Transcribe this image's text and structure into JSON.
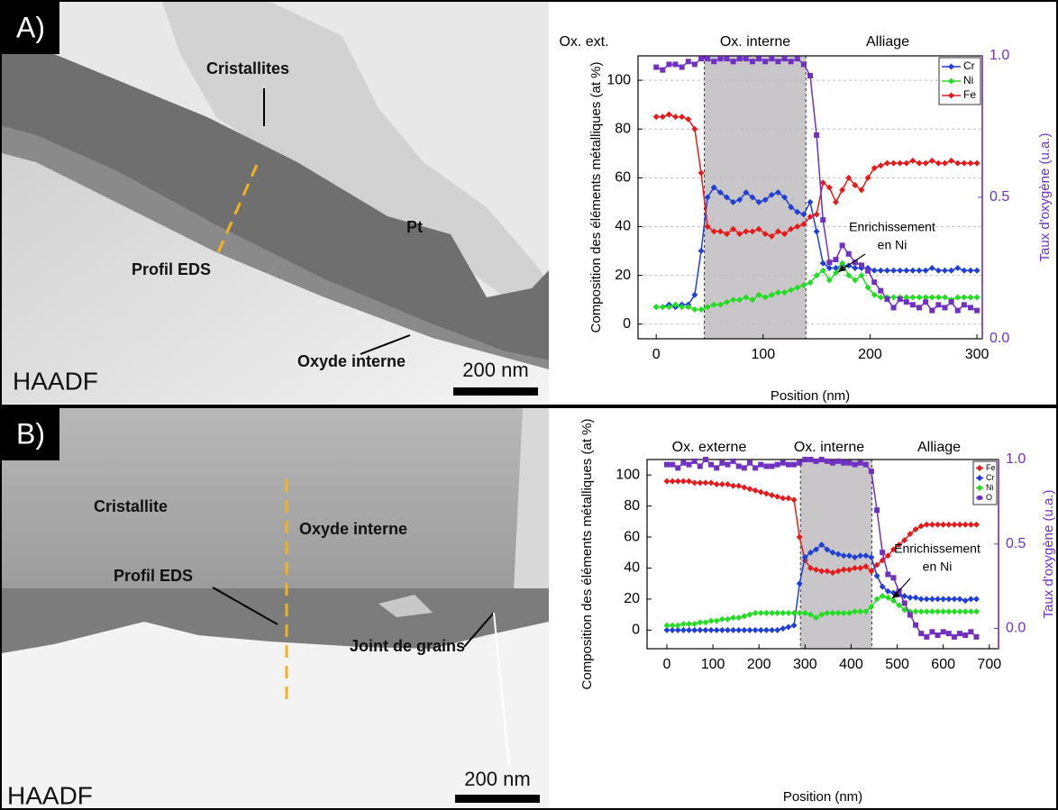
{
  "panels": [
    {
      "label": "A)",
      "image": {
        "mode": "HAADF",
        "scale_bar": "200 nm",
        "annotations": [
          "Cristallites",
          "Pt",
          "Profil EDS",
          "Oxyde interne"
        ]
      }
    },
    {
      "label": "B)",
      "image": {
        "mode": "HAADF",
        "scale_bar": "200 nm",
        "annotations": [
          "Cristallite",
          "Oxyde interne",
          "Profil EDS",
          "Joint de grains"
        ]
      }
    }
  ],
  "chart_data": [
    {
      "type": "line",
      "xlabel": "Position (nm)",
      "ylabel": "Composition des éléments métalliques (at %)",
      "y2label": "Taux d'oxygène (u.a.)",
      "zone_labels": [
        "Ox. ext.",
        "Ox. interne",
        "Alliage"
      ],
      "annotation": [
        "Enrichissement",
        "en Ni"
      ],
      "x": [
        0,
        6,
        12,
        18,
        24,
        30,
        36,
        42,
        48,
        54,
        60,
        66,
        72,
        78,
        84,
        90,
        96,
        102,
        108,
        114,
        120,
        126,
        132,
        138,
        144,
        150,
        156,
        162,
        168,
        174,
        180,
        186,
        192,
        198,
        204,
        210,
        216,
        222,
        228,
        234,
        240,
        246,
        252,
        258,
        264,
        270,
        276,
        282,
        288,
        294,
        300
      ],
      "series": [
        {
          "name": "Cr",
          "color": "#1f3fd6",
          "marker": "diamond",
          "values": [
            7,
            7,
            8,
            7,
            8,
            8,
            12,
            30,
            52,
            56,
            54,
            52,
            50,
            51,
            54,
            52,
            50,
            51,
            53,
            54,
            52,
            48,
            46,
            45,
            50,
            38,
            25,
            23,
            23,
            24,
            24,
            23,
            23,
            23,
            22,
            22,
            22,
            22,
            22,
            22,
            22,
            22,
            22,
            23,
            22,
            22,
            22,
            23,
            22,
            22,
            22
          ]
        },
        {
          "name": "Ni",
          "color": "#22dd22",
          "marker": "diamond",
          "values": [
            7,
            7,
            7,
            8,
            7,
            7,
            6,
            6,
            7,
            8,
            8,
            9,
            10,
            10,
            11,
            10,
            12,
            11,
            12,
            13,
            13,
            14,
            15,
            16,
            17,
            20,
            22,
            18,
            21,
            25,
            20,
            18,
            20,
            15,
            12,
            11,
            11,
            11,
            11,
            11,
            11,
            11,
            11,
            11,
            11,
            11,
            10,
            11,
            11,
            11,
            11
          ]
        },
        {
          "name": "Fe",
          "color": "#e51a1a",
          "marker": "diamond",
          "values": [
            85,
            85,
            86,
            85,
            85,
            84,
            80,
            62,
            40,
            38,
            38,
            37,
            39,
            37,
            38,
            38,
            39,
            37,
            36,
            38,
            37,
            39,
            40,
            41,
            44,
            45,
            58,
            56,
            50,
            55,
            60,
            57,
            55,
            60,
            64,
            65,
            66,
            66,
            66,
            66,
            67,
            66,
            66,
            67,
            66,
            66,
            67,
            66,
            66,
            66,
            66
          ]
        },
        {
          "color": "#7030c0",
          "marker": "square",
          "axis": "y2",
          "values": [
            0.96,
            0.95,
            0.97,
            0.97,
            0.96,
            0.98,
            0.97,
            0.99,
            0.99,
            0.98,
            0.99,
            0.99,
            0.98,
            0.99,
            0.99,
            0.98,
            0.99,
            0.98,
            0.99,
            0.98,
            0.99,
            0.98,
            0.99,
            0.97,
            0.93,
            0.72,
            0.42,
            0.27,
            0.28,
            0.33,
            0.3,
            0.27,
            0.26,
            0.24,
            0.2,
            0.17,
            0.14,
            0.11,
            0.14,
            0.13,
            0.12,
            0.11,
            0.13,
            0.1,
            0.12,
            0.11,
            0.13,
            0.1,
            0.12,
            0.11,
            0.1
          ]
        }
      ],
      "shaded_region": [
        45,
        140
      ],
      "xlim": [
        -17,
        305
      ],
      "ylim": [
        -6,
        110
      ],
      "y2lim": [
        0,
        1.0
      ],
      "xticks": [
        0,
        100,
        200,
        300
      ],
      "yticks": [
        0,
        20,
        40,
        60,
        80,
        100
      ],
      "y2ticks": [
        {
          "value": 0,
          "label": "0.0"
        },
        {
          "value": 0.5,
          "label": "0.5"
        },
        {
          "value": 1,
          "label": "1.0"
        }
      ],
      "grid": true,
      "legend": "upper right"
    },
    {
      "type": "line",
      "xlabel": "Position (nm)",
      "ylabel": "Composition des éléments métalliques (at %)",
      "y2label": "Taux d'oxygène (u.a.)",
      "zone_labels": [
        "Ox. externe",
        "Ox. interne",
        "Alliage"
      ],
      "annotation": [
        "Enrichissement",
        "en Ni"
      ],
      "x": [
        0,
        12,
        24,
        36,
        48,
        60,
        72,
        84,
        96,
        108,
        120,
        132,
        144,
        156,
        168,
        180,
        192,
        204,
        216,
        228,
        240,
        252,
        264,
        276,
        288,
        300,
        312,
        324,
        336,
        348,
        360,
        372,
        384,
        396,
        408,
        420,
        432,
        444,
        456,
        468,
        480,
        492,
        504,
        516,
        528,
        540,
        552,
        564,
        576,
        588,
        600,
        612,
        624,
        636,
        648,
        660,
        672
      ],
      "series": [
        {
          "name": "Fe",
          "color": "#e51a1a",
          "marker": "diamond",
          "values": [
            96,
            96,
            96,
            96,
            96,
            95,
            95,
            95,
            95,
            94,
            94,
            94,
            93,
            93,
            92,
            91,
            90,
            89,
            88,
            87,
            86,
            85,
            85,
            84,
            60,
            45,
            40,
            39,
            38,
            38,
            37,
            38,
            39,
            39,
            40,
            40,
            41,
            38,
            42,
            45,
            48,
            52,
            55,
            58,
            62,
            65,
            67,
            68,
            68,
            68,
            68,
            68,
            68,
            68,
            68,
            68,
            68
          ]
        },
        {
          "name": "Cr",
          "color": "#1f3fd6",
          "marker": "diamond",
          "values": [
            0,
            0,
            0,
            0,
            0,
            0,
            0,
            0,
            0,
            0,
            0,
            0,
            0,
            0,
            0,
            0,
            0,
            0,
            0,
            0,
            0,
            1,
            2,
            3,
            30,
            47,
            50,
            52,
            55,
            52,
            50,
            49,
            48,
            48,
            47,
            48,
            48,
            47,
            35,
            28,
            25,
            24,
            23,
            22,
            21,
            21,
            20,
            20,
            20,
            20,
            20,
            20,
            20,
            20,
            19,
            20,
            20
          ]
        },
        {
          "name": "Ni",
          "color": "#22dd22",
          "marker": "diamond",
          "values": [
            3,
            3,
            3,
            4,
            4,
            4,
            5,
            5,
            6,
            6,
            7,
            7,
            8,
            8,
            9,
            10,
            11,
            11,
            11,
            11,
            11,
            11,
            11,
            11,
            11,
            11,
            10,
            8,
            10,
            11,
            11,
            11,
            11,
            11,
            12,
            12,
            12,
            15,
            20,
            22,
            21,
            19,
            16,
            13,
            12,
            12,
            12,
            12,
            12,
            12,
            12,
            12,
            12,
            12,
            12,
            12,
            12
          ]
        },
        {
          "name": "O",
          "color": "#7030c0",
          "marker": "square",
          "axis": "y2",
          "values": [
            0.97,
            0.97,
            0.95,
            0.98,
            0.97,
            0.99,
            0.96,
            1.0,
            0.97,
            0.95,
            0.98,
            0.97,
            0.99,
            0.96,
            0.95,
            0.98,
            0.95,
            0.97,
            0.96,
            0.96,
            0.97,
            0.98,
            0.97,
            0.97,
            0.98,
            1.0,
            1.0,
            0.99,
            1.0,
            0.99,
            0.98,
            0.99,
            0.98,
            0.98,
            0.97,
            0.98,
            0.97,
            0.93,
            0.7,
            0.45,
            0.32,
            0.3,
            0.22,
            0.15,
            0.08,
            0.02,
            -0.03,
            -0.05,
            -0.02,
            -0.04,
            -0.02,
            -0.03,
            -0.05,
            -0.03,
            -0.04,
            -0.02,
            -0.05
          ]
        }
      ],
      "shaded_region": [
        290,
        445
      ],
      "xlim": [
        -43,
        720
      ],
      "ylim": [
        -12,
        110
      ],
      "y2lim": [
        -0.12,
        1.0
      ],
      "xticks": [
        0,
        100,
        200,
        300,
        400,
        500,
        600,
        700
      ],
      "yticks": [
        0,
        20,
        40,
        60,
        80,
        100
      ],
      "y2ticks": [
        {
          "value": 0,
          "label": "0.0"
        },
        {
          "value": 0.5,
          "label": "0.5"
        },
        {
          "value": 1,
          "label": "1.0"
        }
      ],
      "grid": false,
      "legend": "upper right"
    }
  ]
}
